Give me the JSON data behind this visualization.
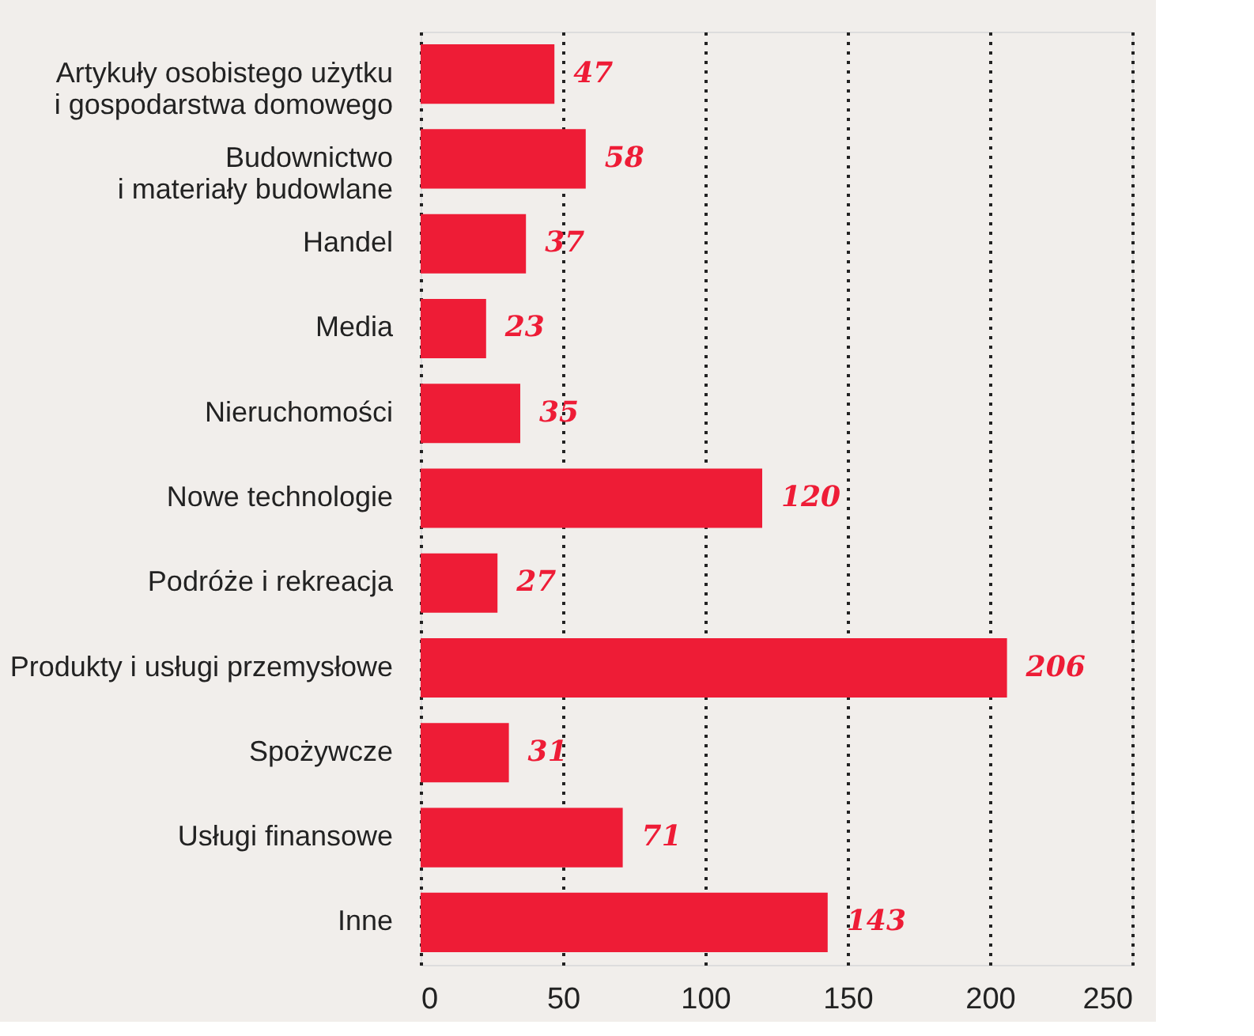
{
  "chart_data": {
    "type": "bar",
    "orientation": "horizontal",
    "categories": [
      "Artykuły osobistego użytku\ni gospodarstwa domowego",
      "Budownictwo\ni materiały budowlane",
      "Handel",
      "Media",
      "Nieruchomości",
      "Nowe technologie",
      "Podróże i rekreacja",
      "Produkty i usługi przemysłowe",
      "Spożywcze",
      "Usługi finansowe",
      "Inne"
    ],
    "values": [
      47,
      58,
      37,
      23,
      35,
      120,
      27,
      206,
      31,
      71,
      143
    ],
    "color": "#ee1c36",
    "xlim": [
      0,
      250
    ],
    "xticks": [
      0,
      50,
      100,
      150,
      200,
      250
    ],
    "grid": "x",
    "data_labels": true
  }
}
